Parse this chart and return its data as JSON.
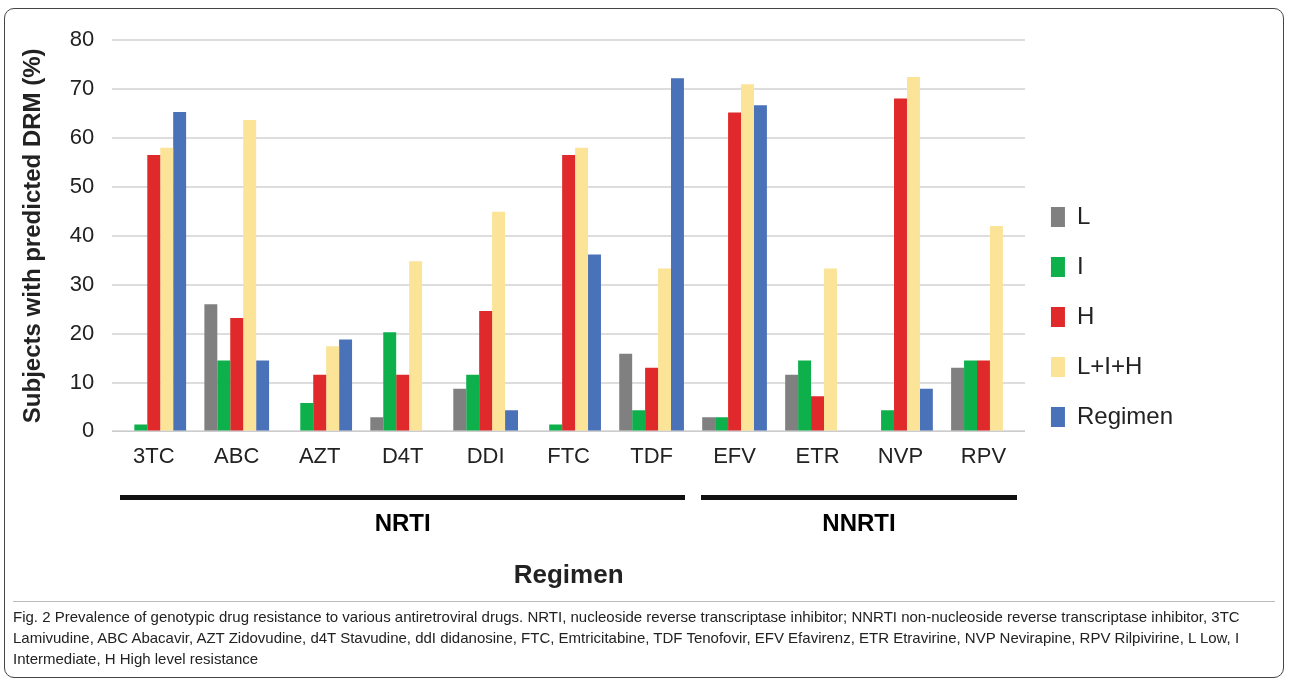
{
  "chart_data": {
    "type": "bar",
    "xlabel": "Regimen",
    "ylabel": "Subjects with predicted DRM (%)",
    "categories": [
      "3TC",
      "ABC",
      "AZT",
      "D4T",
      "DDI",
      "FTC",
      "TDF",
      "EFV",
      "ETR",
      "NVP",
      "RPV"
    ],
    "series": [
      {
        "name": "L",
        "color": "#808080",
        "values": [
          0,
          26,
          0,
          2.9,
          8.7,
          0,
          15.9,
          2.9,
          11.6,
          0,
          13
        ]
      },
      {
        "name": "I",
        "color": "#0db04b",
        "values": [
          1.4,
          14.5,
          5.8,
          20.3,
          11.6,
          1.4,
          4.3,
          2.9,
          14.5,
          4.3,
          14.5
        ]
      },
      {
        "name": "H",
        "color": "#e0292b",
        "values": [
          56.5,
          23.2,
          11.6,
          11.6,
          24.6,
          56.5,
          13,
          65.2,
          7.2,
          68.1,
          14.5
        ]
      },
      {
        "name": "L+I+H",
        "color": "#fbe397",
        "values": [
          58,
          63.7,
          17.4,
          34.8,
          44.9,
          58,
          33.3,
          71,
          33.3,
          72.5,
          42
        ]
      },
      {
        "name": "Regimen",
        "color": "#4a72b8",
        "values": [
          65.3,
          14.5,
          18.8,
          0,
          4.3,
          36.2,
          72.2,
          66.7,
          0,
          8.7,
          0
        ]
      }
    ],
    "ylim": [
      0,
      80
    ],
    "yticks": [
      0,
      10,
      20,
      30,
      40,
      50,
      60,
      70,
      80
    ],
    "grid": "y",
    "legend": "right",
    "annotations": [
      "NRTI",
      "NNRTI",
      "Fig. 2 Prevalence of genotypic drug resistance to various antiretroviral drugs. NRTI, nucleoside reverse transcriptase inhibitor; NNRTI non-nucleoside reverse transcriptase inhibitor, 3TC Lamivudine, ABC Abacavir, AZT Zidovudine, d4T Stavudine, ddI didanosine, FTC, Emtricitabine, TDF Tenofovir, EFV Efavirenz, ETR Etravirine, NVP Nevirapine, RPV Rilpivirine, L Low, I Intermediate, H High level resistance"
    ]
  }
}
